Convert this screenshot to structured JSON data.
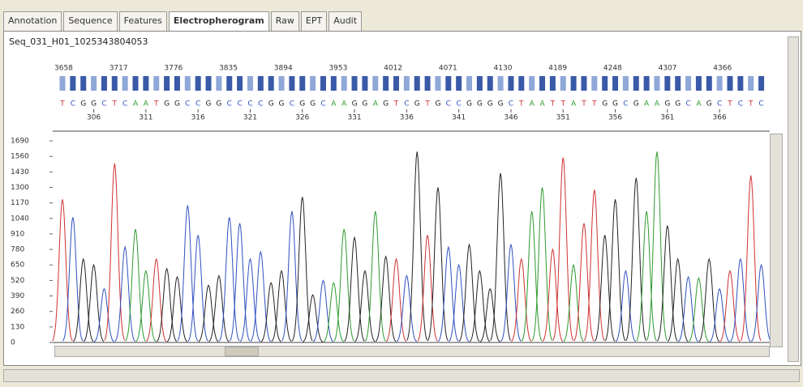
{
  "tabs": [
    "Annotation",
    "Sequence",
    "Features",
    "Electropherogram",
    "Raw",
    "EPT",
    "Audit"
  ],
  "active_tab": 3,
  "file_name": "Seq_031_H01_1025343804053",
  "scan_ticks": [
    3658,
    3717,
    3776,
    3835,
    3894,
    3953,
    4012,
    4071,
    4130,
    4189,
    4248,
    4307,
    4366
  ],
  "base_ticks": [
    306,
    311,
    316,
    321,
    326,
    331,
    336,
    341,
    346,
    351,
    356,
    361,
    366
  ],
  "ylim": [
    0,
    1690
  ],
  "yticks": [
    1690,
    1560,
    1430,
    1300,
    1170,
    1040,
    910,
    780,
    650,
    520,
    390,
    260,
    130,
    0
  ],
  "traces": {
    "sequence": [
      "T",
      "C",
      "G",
      "G",
      "C",
      "T",
      "C",
      "A",
      "A",
      "T",
      "G",
      "G",
      "C",
      "C",
      "G",
      "G",
      "C",
      "C",
      "C",
      "C",
      "G",
      "G",
      "C",
      "G",
      "G",
      "C",
      "A",
      "A",
      "G",
      "G",
      "A",
      "G",
      "T",
      "C",
      "G",
      "T",
      "G",
      "C",
      "C",
      "G",
      "G",
      "G",
      "G",
      "C",
      "T",
      "A",
      "A",
      "T",
      "T",
      "A",
      "T",
      "T",
      "G",
      "G",
      "C",
      "G",
      "A",
      "A",
      "G",
      "G",
      "C",
      "A",
      "G",
      "C",
      "T",
      "C",
      "T",
      "C"
    ],
    "peaks": [
      1200,
      1050,
      700,
      650,
      450,
      1500,
      800,
      950,
      600,
      700,
      620,
      550,
      1150,
      900,
      480,
      560,
      1050,
      1000,
      700,
      760,
      500,
      600,
      1100,
      1220,
      400,
      520,
      500,
      950,
      880,
      600,
      1100,
      720,
      700,
      560,
      1600,
      900,
      1300,
      800,
      650,
      820,
      600,
      450,
      1420,
      820,
      700,
      1100,
      1300,
      780,
      1550,
      650,
      1000,
      1280,
      900,
      1200,
      600,
      1380,
      1100,
      1600,
      980,
      700,
      550,
      540,
      700,
      450,
      600,
      700,
      1400,
      650
    ],
    "colors": {
      "A": "#2e9a2e",
      "C": "#3050c0",
      "G": "#222222",
      "T": "#d03030"
    }
  }
}
